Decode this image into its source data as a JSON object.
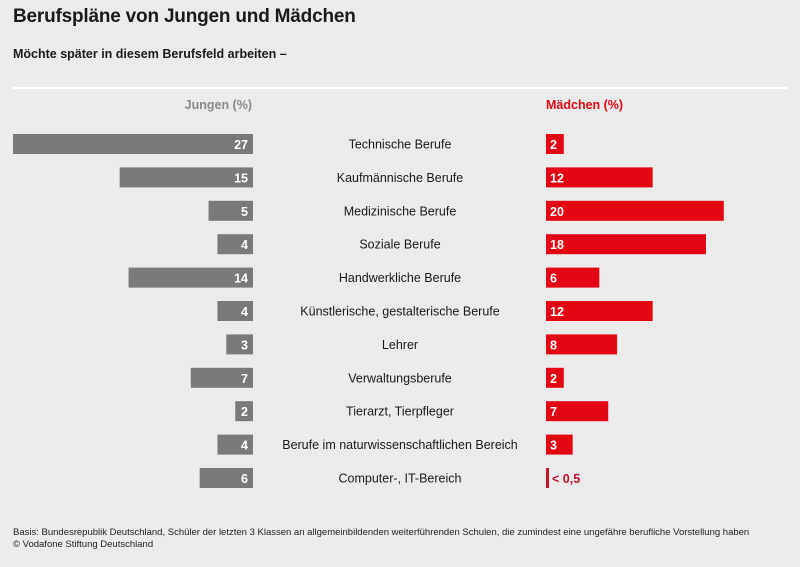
{
  "chart_data": {
    "type": "bar",
    "title": "Berufspläne von Jungen und Mädchen",
    "subtitle": "Möchte später in diesem Berufsfeld arbeiten –",
    "categories": [
      "Technische Berufe",
      "Kaufmännische Berufe",
      "Medizinische Berufe",
      "Soziale Berufe",
      "Handwerkliche Berufe",
      "Künstlerische, gestalterische Berufe",
      "Lehrer",
      "Verwaltungsberufe",
      "Tierarzt, Tierpfleger",
      "Berufe im naturwissenschaftlichen Bereich",
      "Computer-, IT-Bereich"
    ],
    "series": [
      {
        "name": "Jungen (%)",
        "color": "#7a7a7a",
        "values": [
          27,
          15,
          5,
          4,
          14,
          4,
          3,
          7,
          2,
          4,
          6
        ],
        "labels": [
          "27",
          "15",
          "5",
          "4",
          "14",
          "4",
          "3",
          "7",
          "2",
          "4",
          "6"
        ]
      },
      {
        "name": "Mädchen (%)",
        "color": "#e30613",
        "values": [
          2,
          12,
          20,
          18,
          6,
          12,
          8,
          2,
          7,
          3,
          0.5
        ],
        "labels": [
          "2",
          "12",
          "20",
          "18",
          "6",
          "12",
          "8",
          "2",
          "7",
          "3",
          "< 0,5"
        ]
      }
    ],
    "xlim": [
      0,
      27
    ],
    "grid": false,
    "legend": "top"
  },
  "footer": {
    "basis": "Basis: Bundesrepublik Deutschland, Schüler der letzten 3 Klassen an allgemeinbildenden weiterführenden Schulen, die zumindest eine ungefähre berufliche Vorstellung haben",
    "source": "© Vodafone Stiftung Deutschland"
  }
}
